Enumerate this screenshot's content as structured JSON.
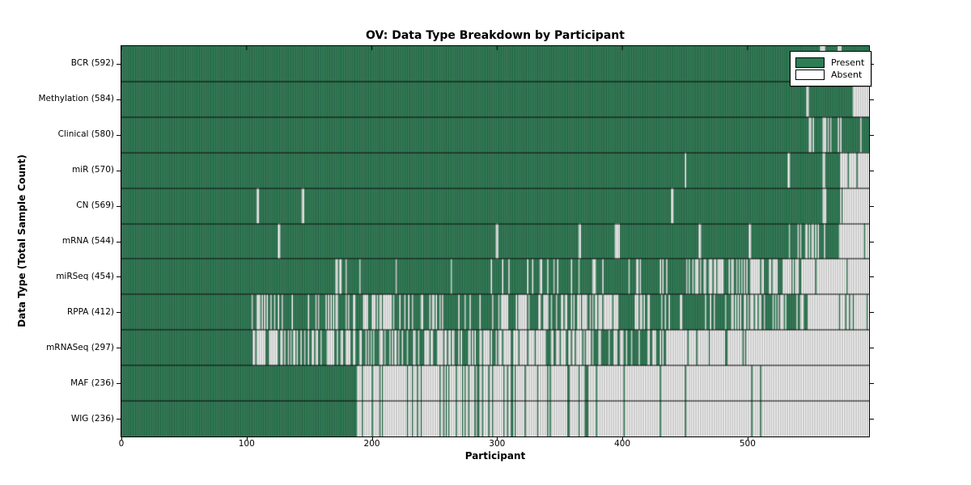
{
  "colors": {
    "present": "#2e7d55",
    "present_edge": "rgba(10,42,26,0.55)",
    "absent": "#ffffff",
    "absent_edge": "rgba(128,128,128,0.85)",
    "frame": "#000000",
    "background": "#ffffff"
  },
  "chart_data": {
    "type": "heatmap",
    "title": "OV: Data Type Breakdown by Participant",
    "xlabel": "Participant",
    "ylabel": "Data Type (Total Sample Count)",
    "x_ticks": [
      0,
      100,
      200,
      300,
      400,
      500
    ],
    "x_range": [
      0,
      597
    ],
    "grid": false,
    "legend_position": "upper right",
    "legend": [
      {
        "label": "Present",
        "value": "present"
      },
      {
        "label": "Absent",
        "value": "absent"
      }
    ],
    "rows": [
      {
        "label": "BCR",
        "count": 592,
        "display": "BCR (592)",
        "present_segments": [
          [
            0,
            558,
            1
          ],
          [
            558,
            562,
            0.3
          ],
          [
            562,
            572,
            1
          ],
          [
            572,
            575,
            0.4
          ],
          [
            575,
            597,
            1
          ]
        ]
      },
      {
        "label": "Methylation",
        "count": 584,
        "display": "Methylation (584)",
        "present_segments": [
          [
            0,
            547,
            1
          ],
          [
            547,
            549,
            0.3
          ],
          [
            549,
            584,
            1
          ],
          [
            584,
            597,
            0
          ]
        ]
      },
      {
        "label": "Clinical",
        "count": 580,
        "display": "Clinical (580)",
        "present_segments": [
          [
            0,
            549,
            1
          ],
          [
            549,
            553,
            0.4
          ],
          [
            553,
            559,
            1
          ],
          [
            559,
            567,
            0.2
          ],
          [
            567,
            572,
            1
          ],
          [
            572,
            577,
            0.3
          ],
          [
            577,
            589,
            1
          ],
          [
            589,
            591,
            0.3
          ],
          [
            591,
            597,
            1
          ]
        ]
      },
      {
        "label": "miR",
        "count": 570,
        "display": "miR (570)",
        "present_segments": [
          [
            0,
            450,
            1
          ],
          [
            450,
            452,
            0.2
          ],
          [
            452,
            532,
            1
          ],
          [
            532,
            534,
            0.4
          ],
          [
            534,
            560,
            1
          ],
          [
            560,
            563,
            0.2
          ],
          [
            563,
            574,
            1
          ],
          [
            574,
            597,
            0.04
          ]
        ]
      },
      {
        "label": "CN",
        "count": 569,
        "display": "CN (569)",
        "present_segments": [
          [
            0,
            108,
            1
          ],
          [
            108,
            110,
            0
          ],
          [
            110,
            144,
            1
          ],
          [
            144,
            146,
            0
          ],
          [
            146,
            438,
            1
          ],
          [
            438,
            441,
            0.4
          ],
          [
            441,
            560,
            1
          ],
          [
            560,
            563,
            0.3
          ],
          [
            563,
            574,
            1
          ],
          [
            574,
            597,
            0.04
          ]
        ]
      },
      {
        "label": "mRNA",
        "count": 544,
        "display": "mRNA (544)",
        "present_segments": [
          [
            0,
            125,
            1
          ],
          [
            125,
            127,
            0
          ],
          [
            127,
            299,
            1
          ],
          [
            299,
            301,
            0
          ],
          [
            301,
            364,
            1
          ],
          [
            364,
            367,
            0.3
          ],
          [
            367,
            394,
            1
          ],
          [
            394,
            398,
            0.3
          ],
          [
            398,
            461,
            1
          ],
          [
            461,
            463,
            0.3
          ],
          [
            463,
            497,
            1
          ],
          [
            497,
            503,
            0.5
          ],
          [
            503,
            533,
            1
          ],
          [
            533,
            558,
            0.5
          ],
          [
            558,
            573,
            0.9
          ],
          [
            573,
            597,
            0.04
          ]
        ]
      },
      {
        "label": "miRSeq",
        "count": 454,
        "display": "miRSeq (454)",
        "present_segments": [
          [
            0,
            165,
            1
          ],
          [
            165,
            182,
            0.75
          ],
          [
            182,
            225,
            0.9
          ],
          [
            225,
            295,
            0.97
          ],
          [
            295,
            330,
            0.85
          ],
          [
            330,
            455,
            0.8
          ],
          [
            455,
            510,
            0.35
          ],
          [
            510,
            532,
            0.55
          ],
          [
            532,
            552,
            0.35
          ],
          [
            552,
            597,
            0.02
          ]
        ]
      },
      {
        "label": "RPPA",
        "count": 412,
        "display": "RPPA (412)",
        "present_segments": [
          [
            0,
            103,
            1
          ],
          [
            103,
            126,
            0.6
          ],
          [
            126,
            160,
            0.85
          ],
          [
            160,
            202,
            0.7
          ],
          [
            202,
            217,
            0.3
          ],
          [
            217,
            278,
            0.8
          ],
          [
            278,
            301,
            0.92
          ],
          [
            301,
            327,
            0.5
          ],
          [
            327,
            381,
            0.6
          ],
          [
            381,
            396,
            0.25
          ],
          [
            396,
            449,
            0.7
          ],
          [
            449,
            487,
            0.92
          ],
          [
            487,
            514,
            0.3
          ],
          [
            514,
            548,
            0.6
          ],
          [
            548,
            597,
            0.12
          ]
        ]
      },
      {
        "label": "mRNASeq",
        "count": 297,
        "display": "mRNASeq (297)",
        "present_segments": [
          [
            0,
            105,
            1
          ],
          [
            105,
            126,
            0.25
          ],
          [
            126,
            164,
            0.55
          ],
          [
            164,
            177,
            0.15
          ],
          [
            177,
            221,
            0.5
          ],
          [
            221,
            244,
            0.75
          ],
          [
            244,
            267,
            0.5
          ],
          [
            267,
            289,
            0.8
          ],
          [
            289,
            316,
            0.45
          ],
          [
            316,
            331,
            0.2
          ],
          [
            331,
            381,
            0.5
          ],
          [
            381,
            419,
            0.55
          ],
          [
            419,
            436,
            0.85
          ],
          [
            436,
            597,
            0.07
          ]
        ]
      },
      {
        "label": "MAF",
        "count": 236,
        "display": "MAF (236)",
        "present_segments": [
          [
            0,
            187,
            1
          ],
          [
            187,
            229,
            0.15
          ],
          [
            229,
            267,
            0.3
          ],
          [
            267,
            293,
            0.35
          ],
          [
            293,
            328,
            0.3
          ],
          [
            328,
            366,
            0.15
          ],
          [
            366,
            419,
            0.12
          ],
          [
            419,
            597,
            0.03
          ]
        ]
      },
      {
        "label": "WIG",
        "count": 236,
        "display": "WIG (236)",
        "present_segments": [
          [
            0,
            187,
            1
          ],
          [
            187,
            229,
            0.15
          ],
          [
            229,
            267,
            0.3
          ],
          [
            267,
            293,
            0.35
          ],
          [
            293,
            328,
            0.3
          ],
          [
            328,
            366,
            0.15
          ],
          [
            366,
            419,
            0.12
          ],
          [
            419,
            597,
            0.03
          ]
        ]
      }
    ]
  }
}
